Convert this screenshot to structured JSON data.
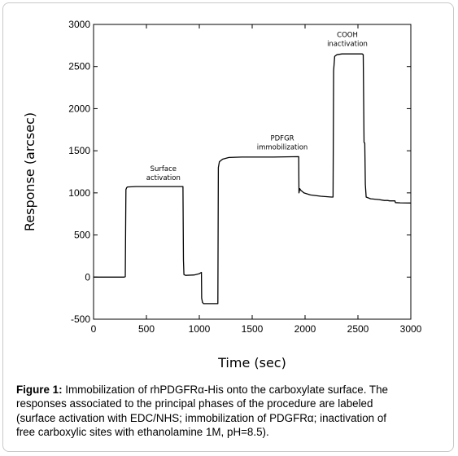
{
  "chart_data": {
    "type": "line",
    "xlabel": "Time (sec)",
    "ylabel": "Response (arcsec)",
    "xlim": [
      0,
      3000
    ],
    "ylim": [
      -500,
      3000
    ],
    "x_ticks": [
      "0",
      "500",
      "1000",
      "1500",
      "2000",
      "2500",
      "3000"
    ],
    "y_ticks": [
      "-500",
      "0",
      "500",
      "1000",
      "1500",
      "2000",
      "2500",
      "3000"
    ],
    "grid": false,
    "series": [
      {
        "color": "#000000",
        "points": [
          [
            0,
            0
          ],
          [
            290,
            0
          ],
          [
            300,
            5
          ],
          [
            306,
            1040
          ],
          [
            312,
            1060
          ],
          [
            320,
            1070
          ],
          [
            400,
            1075
          ],
          [
            600,
            1075
          ],
          [
            845,
            1075
          ],
          [
            850,
            200
          ],
          [
            855,
            30
          ],
          [
            870,
            20
          ],
          [
            950,
            25
          ],
          [
            1000,
            40
          ],
          [
            1020,
            55
          ],
          [
            1022,
            -250
          ],
          [
            1030,
            -300
          ],
          [
            1040,
            -315
          ],
          [
            1100,
            -315
          ],
          [
            1175,
            -315
          ],
          [
            1180,
            1300
          ],
          [
            1190,
            1370
          ],
          [
            1220,
            1400
          ],
          [
            1280,
            1420
          ],
          [
            1400,
            1425
          ],
          [
            1700,
            1425
          ],
          [
            1940,
            1430
          ],
          [
            1942,
            1000
          ],
          [
            1950,
            1050
          ],
          [
            1960,
            1030
          ],
          [
            1990,
            1000
          ],
          [
            2050,
            975
          ],
          [
            2150,
            960
          ],
          [
            2250,
            950
          ],
          [
            2265,
            950
          ],
          [
            2270,
            2450
          ],
          [
            2280,
            2620
          ],
          [
            2300,
            2640
          ],
          [
            2350,
            2650
          ],
          [
            2450,
            2650
          ],
          [
            2540,
            2650
          ],
          [
            2550,
            2640
          ],
          [
            2558,
            1600
          ],
          [
            2565,
            1590
          ],
          [
            2570,
            1100
          ],
          [
            2578,
            950
          ],
          [
            2620,
            930
          ],
          [
            2700,
            920
          ],
          [
            2750,
            910
          ],
          [
            2780,
            910
          ],
          [
            2800,
            905
          ],
          [
            2850,
            905
          ],
          [
            2855,
            885
          ],
          [
            2900,
            882
          ],
          [
            3000,
            880
          ]
        ]
      }
    ],
    "annotations": [
      {
        "lines": [
          "Surface",
          "activation"
        ],
        "x": 660,
        "y": 1260
      },
      {
        "lines": [
          "PDFGR",
          "immobilization"
        ],
        "x": 1785,
        "y": 1620
      },
      {
        "lines": [
          "COOH",
          "inactivation"
        ],
        "x": 2400,
        "y": 2850
      }
    ]
  },
  "caption": {
    "label": "Figure 1:",
    "lines": [
      " Immobilization of rhPDGFRα-His onto the carboxylate surface. The",
      "responses associated to the principal phases of the procedure are labeled",
      "(surface activation with EDC/NHS; immobilization of PDGFRα; inactivation of",
      "free carboxylic sites with ethanolamine 1M, pH=8.5)."
    ]
  }
}
